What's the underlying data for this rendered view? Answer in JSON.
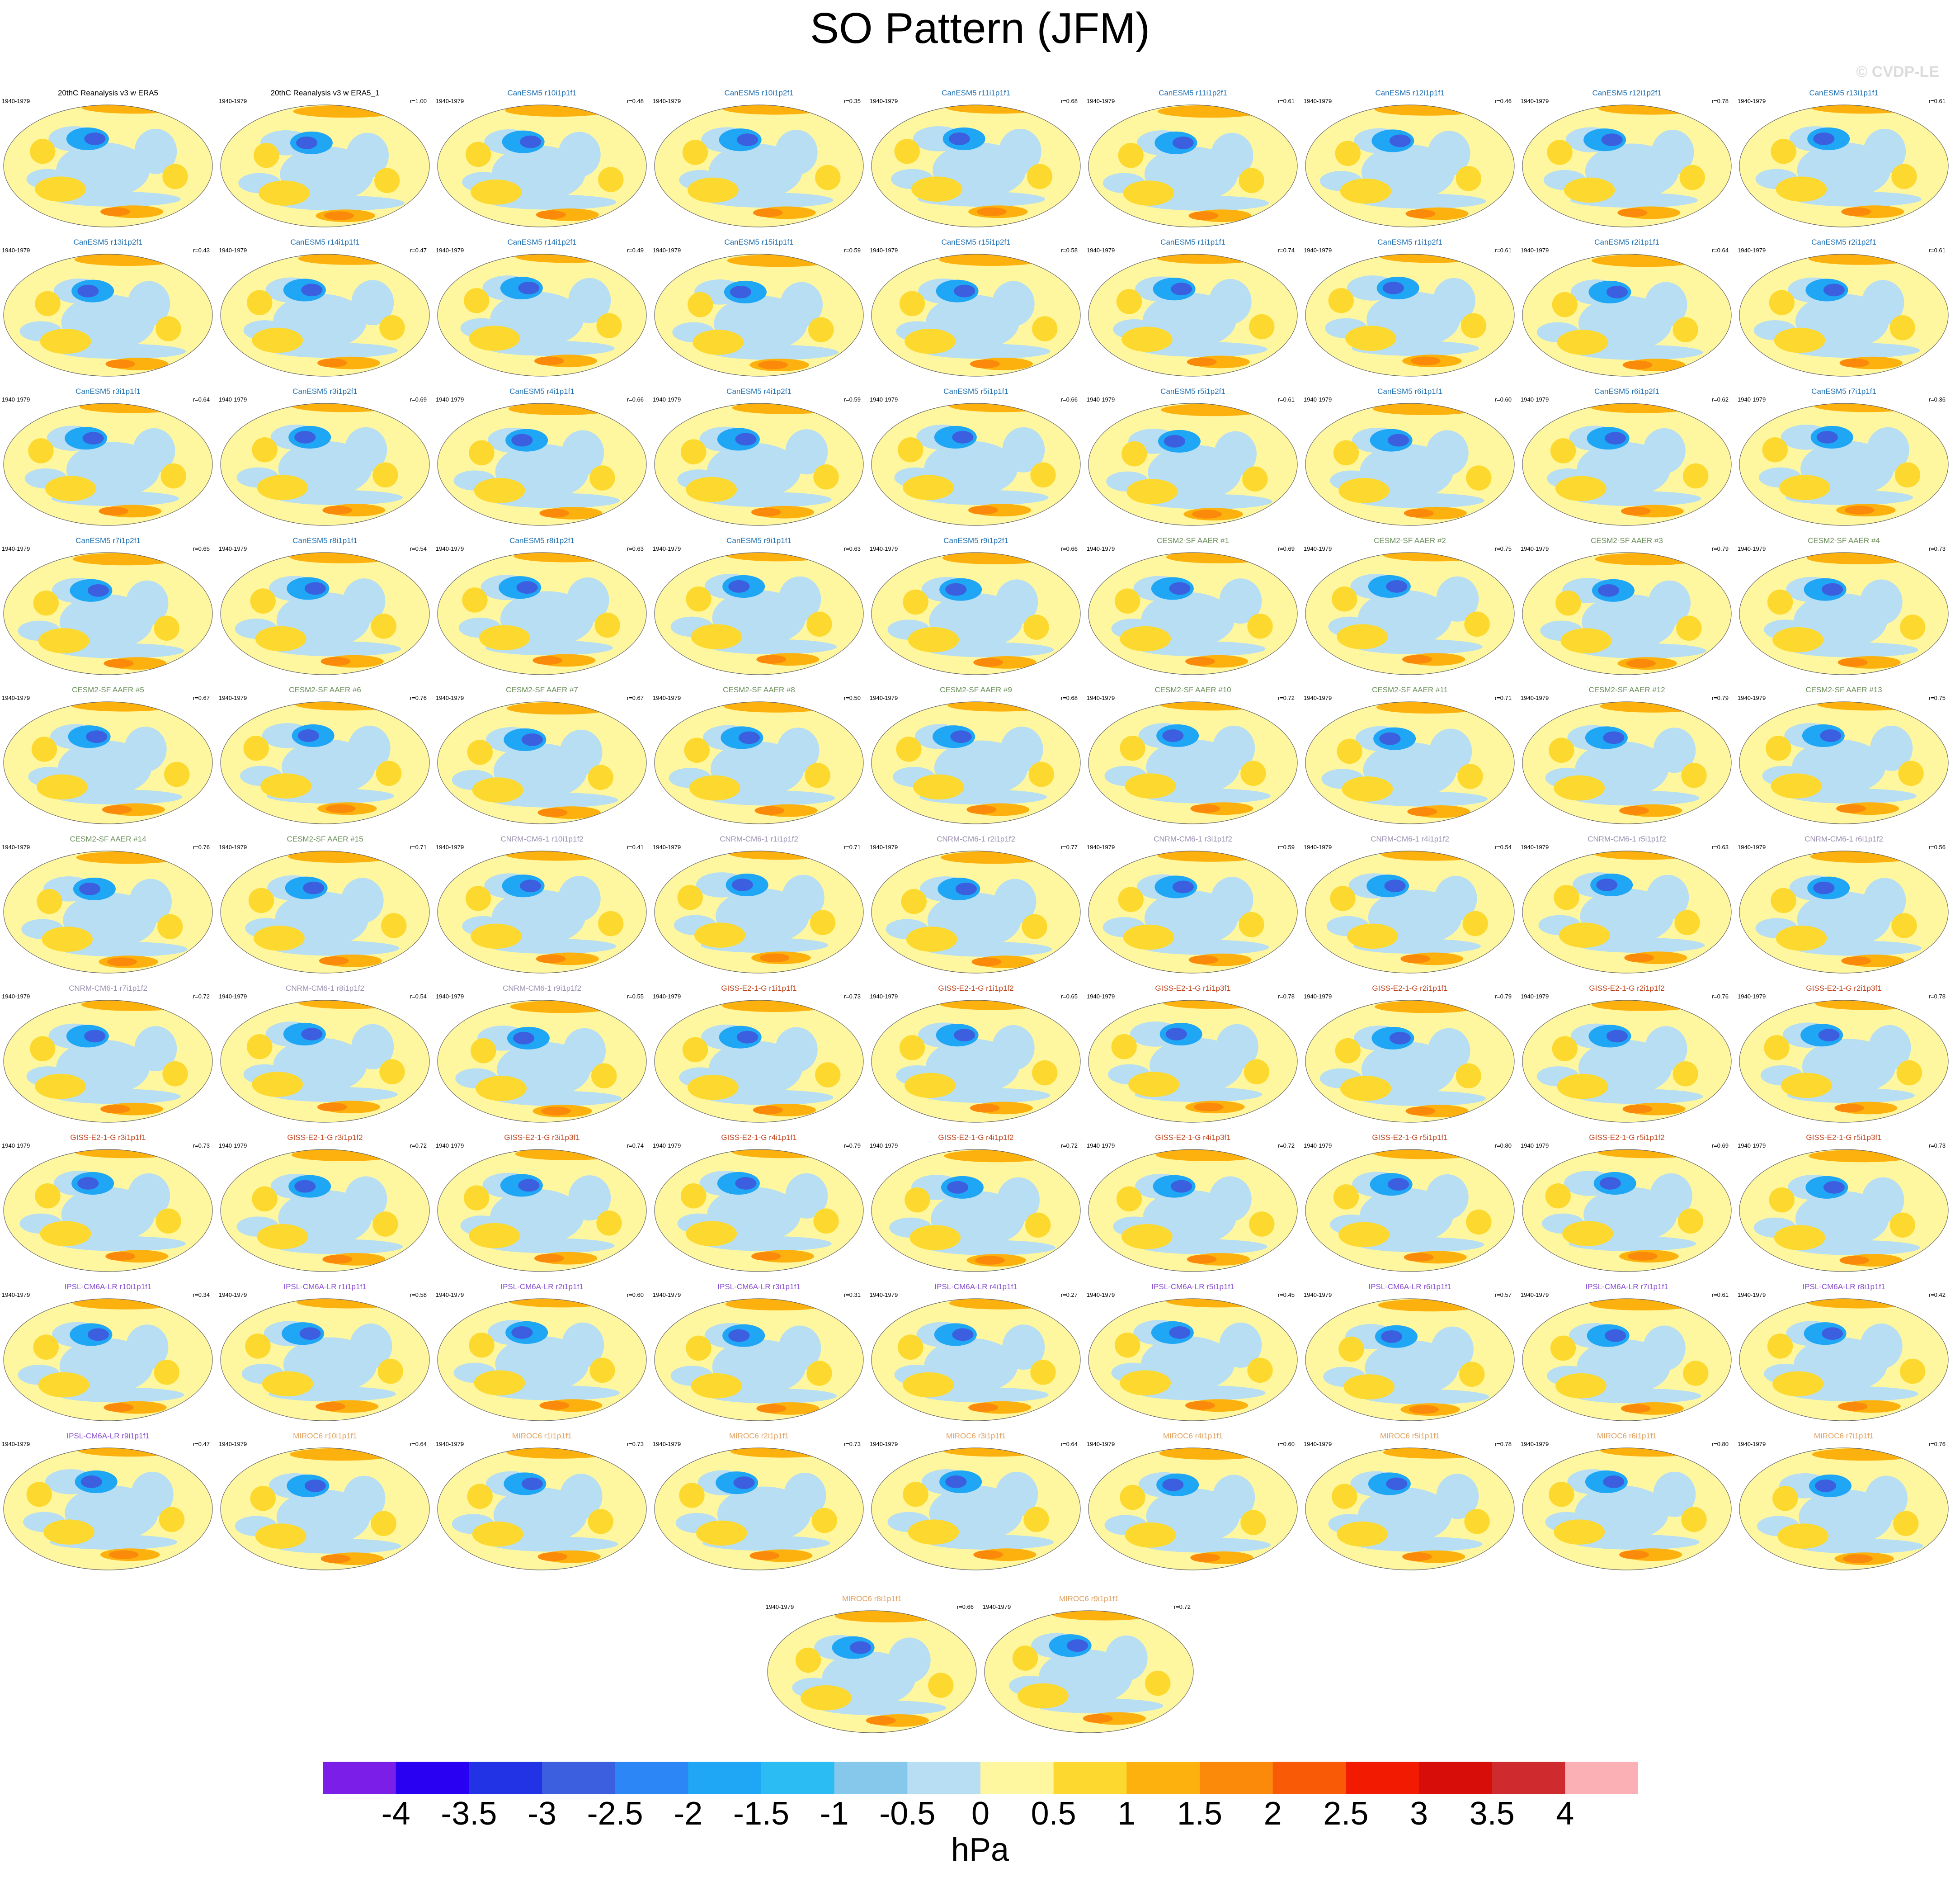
{
  "title": "SO Pattern (JFM)",
  "copyright": "© CVDP-LE",
  "chart_data": {
    "type": "heatmap",
    "title": "SO Pattern (JFM)",
    "projection": "robinson",
    "colorbar": {
      "units": "hPa",
      "ticks": [
        "-4",
        "-3.5",
        "-3",
        "-2.5",
        "-2",
        "-1.5",
        "-1",
        "-0.5",
        "0",
        "0.5",
        "1",
        "1.5",
        "2",
        "2.5",
        "3",
        "3.5",
        "4"
      ],
      "colors": [
        "#7a1ee8",
        "#2a00f2",
        "#2233e6",
        "#3b5fdf",
        "#2c86f5",
        "#1fa6f4",
        "#2bbcf4",
        "#86c7ec",
        "#b7def2",
        "#fff7a0",
        "#fdd930",
        "#fdb10e",
        "#fb8a0a",
        "#f85a06",
        "#f21b02",
        "#d70d0a",
        "#cf2a2e",
        "#fab0b5"
      ],
      "range": [
        -4,
        4
      ]
    },
    "panels": [
      {
        "name": "20thC Reanalysis v3 w ERA5",
        "years": "1940-1979",
        "corr": "",
        "group": "obs"
      },
      {
        "name": "20thC Reanalysis v3 w ERA5_1",
        "years": "1940-1979",
        "corr": "r=1.00",
        "group": "obs"
      },
      {
        "name": "CanESM5 r10i1p1f1",
        "years": "1940-1979",
        "corr": "r=0.48",
        "group": "canesm"
      },
      {
        "name": "CanESM5 r10i1p2f1",
        "years": "1940-1979",
        "corr": "r=0.35",
        "group": "canesm"
      },
      {
        "name": "CanESM5 r11i1p1f1",
        "years": "1940-1979",
        "corr": "r=0.68",
        "group": "canesm"
      },
      {
        "name": "CanESM5 r11i1p2f1",
        "years": "1940-1979",
        "corr": "r=0.61",
        "group": "canesm"
      },
      {
        "name": "CanESM5 r12i1p1f1",
        "years": "1940-1979",
        "corr": "r=0.46",
        "group": "canesm"
      },
      {
        "name": "CanESM5 r12i1p2f1",
        "years": "1940-1979",
        "corr": "r=0.78",
        "group": "canesm"
      },
      {
        "name": "CanESM5 r13i1p1f1",
        "years": "1940-1979",
        "corr": "r=0.61",
        "group": "canesm"
      },
      {
        "name": "CanESM5 r13i1p2f1",
        "years": "1940-1979",
        "corr": "r=0.43",
        "group": "canesm"
      },
      {
        "name": "CanESM5 r14i1p1f1",
        "years": "1940-1979",
        "corr": "r=0.47",
        "group": "canesm"
      },
      {
        "name": "CanESM5 r14i1p2f1",
        "years": "1940-1979",
        "corr": "r=0.49",
        "group": "canesm"
      },
      {
        "name": "CanESM5 r15i1p1f1",
        "years": "1940-1979",
        "corr": "r=0.59",
        "group": "canesm"
      },
      {
        "name": "CanESM5 r15i1p2f1",
        "years": "1940-1979",
        "corr": "r=0.58",
        "group": "canesm"
      },
      {
        "name": "CanESM5 r1i1p1f1",
        "years": "1940-1979",
        "corr": "r=0.74",
        "group": "canesm"
      },
      {
        "name": "CanESM5 r1i1p2f1",
        "years": "1940-1979",
        "corr": "r=0.61",
        "group": "canesm"
      },
      {
        "name": "CanESM5 r2i1p1f1",
        "years": "1940-1979",
        "corr": "r=0.64",
        "group": "canesm"
      },
      {
        "name": "CanESM5 r2i1p2f1",
        "years": "1940-1979",
        "corr": "r=0.61",
        "group": "canesm"
      },
      {
        "name": "CanESM5 r3i1p1f1",
        "years": "1940-1979",
        "corr": "r=0.64",
        "group": "canesm"
      },
      {
        "name": "CanESM5 r3i1p2f1",
        "years": "1940-1979",
        "corr": "r=0.69",
        "group": "canesm"
      },
      {
        "name": "CanESM5 r4i1p1f1",
        "years": "1940-1979",
        "corr": "r=0.66",
        "group": "canesm"
      },
      {
        "name": "CanESM5 r4i1p2f1",
        "years": "1940-1979",
        "corr": "r=0.59",
        "group": "canesm"
      },
      {
        "name": "CanESM5 r5i1p1f1",
        "years": "1940-1979",
        "corr": "r=0.66",
        "group": "canesm"
      },
      {
        "name": "CanESM5 r5i1p2f1",
        "years": "1940-1979",
        "corr": "r=0.61",
        "group": "canesm"
      },
      {
        "name": "CanESM5 r6i1p1f1",
        "years": "1940-1979",
        "corr": "r=0.60",
        "group": "canesm"
      },
      {
        "name": "CanESM5 r6i1p2f1",
        "years": "1940-1979",
        "corr": "r=0.62",
        "group": "canesm"
      },
      {
        "name": "CanESM5 r7i1p1f1",
        "years": "1940-1979",
        "corr": "r=0.36",
        "group": "canesm"
      },
      {
        "name": "CanESM5 r7i1p2f1",
        "years": "1940-1979",
        "corr": "r=0.65",
        "group": "canesm"
      },
      {
        "name": "CanESM5 r8i1p1f1",
        "years": "1940-1979",
        "corr": "r=0.54",
        "group": "canesm"
      },
      {
        "name": "CanESM5 r8i1p2f1",
        "years": "1940-1979",
        "corr": "r=0.63",
        "group": "canesm"
      },
      {
        "name": "CanESM5 r9i1p1f1",
        "years": "1940-1979",
        "corr": "r=0.63",
        "group": "canesm"
      },
      {
        "name": "CanESM5 r9i1p2f1",
        "years": "1940-1979",
        "corr": "r=0.66",
        "group": "canesm"
      },
      {
        "name": "CESM2-SF AAER #1",
        "years": "1940-1979",
        "corr": "r=0.69",
        "group": "cesm"
      },
      {
        "name": "CESM2-SF AAER #2",
        "years": "1940-1979",
        "corr": "r=0.75",
        "group": "cesm"
      },
      {
        "name": "CESM2-SF AAER #3",
        "years": "1940-1979",
        "corr": "r=0.79",
        "group": "cesm"
      },
      {
        "name": "CESM2-SF AAER #4",
        "years": "1940-1979",
        "corr": "r=0.73",
        "group": "cesm"
      },
      {
        "name": "CESM2-SF AAER #5",
        "years": "1940-1979",
        "corr": "r=0.67",
        "group": "cesm"
      },
      {
        "name": "CESM2-SF AAER #6",
        "years": "1940-1979",
        "corr": "r=0.76",
        "group": "cesm"
      },
      {
        "name": "CESM2-SF AAER #7",
        "years": "1940-1979",
        "corr": "r=0.67",
        "group": "cesm"
      },
      {
        "name": "CESM2-SF AAER #8",
        "years": "1940-1979",
        "corr": "r=0.50",
        "group": "cesm"
      },
      {
        "name": "CESM2-SF AAER #9",
        "years": "1940-1979",
        "corr": "r=0.68",
        "group": "cesm"
      },
      {
        "name": "CESM2-SF AAER #10",
        "years": "1940-1979",
        "corr": "r=0.72",
        "group": "cesm"
      },
      {
        "name": "CESM2-SF AAER #11",
        "years": "1940-1979",
        "corr": "r=0.71",
        "group": "cesm"
      },
      {
        "name": "CESM2-SF AAER #12",
        "years": "1940-1979",
        "corr": "r=0.79",
        "group": "cesm"
      },
      {
        "name": "CESM2-SF AAER #13",
        "years": "1940-1979",
        "corr": "r=0.75",
        "group": "cesm"
      },
      {
        "name": "CESM2-SF AAER #14",
        "years": "1940-1979",
        "corr": "r=0.76",
        "group": "cesm"
      },
      {
        "name": "CESM2-SF AAER #15",
        "years": "1940-1979",
        "corr": "r=0.71",
        "group": "cesm"
      },
      {
        "name": "CNRM-CM6-1 r10i1p1f2",
        "years": "1940-1979",
        "corr": "r=0.41",
        "group": "cnrm"
      },
      {
        "name": "CNRM-CM6-1 r1i1p1f2",
        "years": "1940-1979",
        "corr": "r=0.71",
        "group": "cnrm"
      },
      {
        "name": "CNRM-CM6-1 r2i1p1f2",
        "years": "1940-1979",
        "corr": "r=0.77",
        "group": "cnrm"
      },
      {
        "name": "CNRM-CM6-1 r3i1p1f2",
        "years": "1940-1979",
        "corr": "r=0.59",
        "group": "cnrm"
      },
      {
        "name": "CNRM-CM6-1 r4i1p1f2",
        "years": "1940-1979",
        "corr": "r=0.54",
        "group": "cnrm"
      },
      {
        "name": "CNRM-CM6-1 r5i1p1f2",
        "years": "1940-1979",
        "corr": "r=0.63",
        "group": "cnrm"
      },
      {
        "name": "CNRM-CM6-1 r6i1p1f2",
        "years": "1940-1979",
        "corr": "r=0.56",
        "group": "cnrm"
      },
      {
        "name": "CNRM-CM6-1 r7i1p1f2",
        "years": "1940-1979",
        "corr": "r=0.72",
        "group": "cnrm"
      },
      {
        "name": "CNRM-CM6-1 r8i1p1f2",
        "years": "1940-1979",
        "corr": "r=0.54",
        "group": "cnrm"
      },
      {
        "name": "CNRM-CM6-1 r9i1p1f2",
        "years": "1940-1979",
        "corr": "r=0.55",
        "group": "cnrm"
      },
      {
        "name": "GISS-E2-1-G r1i1p1f1",
        "years": "1940-1979",
        "corr": "r=0.73",
        "group": "giss"
      },
      {
        "name": "GISS-E2-1-G r1i1p1f2",
        "years": "1940-1979",
        "corr": "r=0.65",
        "group": "giss"
      },
      {
        "name": "GISS-E2-1-G r1i1p3f1",
        "years": "1940-1979",
        "corr": "r=0.78",
        "group": "giss"
      },
      {
        "name": "GISS-E2-1-G r2i1p1f1",
        "years": "1940-1979",
        "corr": "r=0.79",
        "group": "giss"
      },
      {
        "name": "GISS-E2-1-G r2i1p1f2",
        "years": "1940-1979",
        "corr": "r=0.76",
        "group": "giss"
      },
      {
        "name": "GISS-E2-1-G r2i1p3f1",
        "years": "1940-1979",
        "corr": "r=0.78",
        "group": "giss"
      },
      {
        "name": "GISS-E2-1-G r3i1p1f1",
        "years": "1940-1979",
        "corr": "r=0.73",
        "group": "giss"
      },
      {
        "name": "GISS-E2-1-G r3i1p1f2",
        "years": "1940-1979",
        "corr": "r=0.72",
        "group": "giss"
      },
      {
        "name": "GISS-E2-1-G r3i1p3f1",
        "years": "1940-1979",
        "corr": "r=0.74",
        "group": "giss"
      },
      {
        "name": "GISS-E2-1-G r4i1p1f1",
        "years": "1940-1979",
        "corr": "r=0.79",
        "group": "giss"
      },
      {
        "name": "GISS-E2-1-G r4i1p1f2",
        "years": "1940-1979",
        "corr": "r=0.72",
        "group": "giss"
      },
      {
        "name": "GISS-E2-1-G r4i1p3f1",
        "years": "1940-1979",
        "corr": "r=0.72",
        "group": "giss"
      },
      {
        "name": "GISS-E2-1-G r5i1p1f1",
        "years": "1940-1979",
        "corr": "r=0.80",
        "group": "giss"
      },
      {
        "name": "GISS-E2-1-G r5i1p1f2",
        "years": "1940-1979",
        "corr": "r=0.69",
        "group": "giss"
      },
      {
        "name": "GISS-E2-1-G r5i1p3f1",
        "years": "1940-1979",
        "corr": "r=0.73",
        "group": "giss"
      },
      {
        "name": "IPSL-CM6A-LR r10i1p1f1",
        "years": "1940-1979",
        "corr": "r=0.34",
        "group": "ipsl"
      },
      {
        "name": "IPSL-CM6A-LR r1i1p1f1",
        "years": "1940-1979",
        "corr": "r=0.58",
        "group": "ipsl"
      },
      {
        "name": "IPSL-CM6A-LR r2i1p1f1",
        "years": "1940-1979",
        "corr": "r=0.60",
        "group": "ipsl"
      },
      {
        "name": "IPSL-CM6A-LR r3i1p1f1",
        "years": "1940-1979",
        "corr": "r=0.31",
        "group": "ipsl"
      },
      {
        "name": "IPSL-CM6A-LR r4i1p1f1",
        "years": "1940-1979",
        "corr": "r=0.27",
        "group": "ipsl"
      },
      {
        "name": "IPSL-CM6A-LR r5i1p1f1",
        "years": "1940-1979",
        "corr": "r=0.45",
        "group": "ipsl"
      },
      {
        "name": "IPSL-CM6A-LR r6i1p1f1",
        "years": "1940-1979",
        "corr": "r=0.57",
        "group": "ipsl"
      },
      {
        "name": "IPSL-CM6A-LR r7i1p1f1",
        "years": "1940-1979",
        "corr": "r=0.61",
        "group": "ipsl"
      },
      {
        "name": "IPSL-CM6A-LR r8i1p1f1",
        "years": "1940-1979",
        "corr": "r=0.42",
        "group": "ipsl"
      },
      {
        "name": "IPSL-CM6A-LR r9i1p1f1",
        "years": "1940-1979",
        "corr": "r=0.47",
        "group": "ipsl"
      },
      {
        "name": "MIROC6 r10i1p1f1",
        "years": "1940-1979",
        "corr": "r=0.64",
        "group": "miroc"
      },
      {
        "name": "MIROC6 r1i1p1f1",
        "years": "1940-1979",
        "corr": "r=0.73",
        "group": "miroc"
      },
      {
        "name": "MIROC6 r2i1p1f1",
        "years": "1940-1979",
        "corr": "r=0.73",
        "group": "miroc"
      },
      {
        "name": "MIROC6 r3i1p1f1",
        "years": "1940-1979",
        "corr": "r=0.64",
        "group": "miroc"
      },
      {
        "name": "MIROC6 r4i1p1f1",
        "years": "1940-1979",
        "corr": "r=0.60",
        "group": "miroc"
      },
      {
        "name": "MIROC6 r5i1p1f1",
        "years": "1940-1979",
        "corr": "r=0.78",
        "group": "miroc"
      },
      {
        "name": "MIROC6 r6i1p1f1",
        "years": "1940-1979",
        "corr": "r=0.80",
        "group": "miroc"
      },
      {
        "name": "MIROC6 r7i1p1f1",
        "years": "1940-1979",
        "corr": "r=0.76",
        "group": "miroc"
      },
      {
        "name": "MIROC6 r8i1p1f1",
        "years": "1940-1979",
        "corr": "r=0.66",
        "group": "miroc"
      },
      {
        "name": "MIROC6 r9i1p1f1",
        "years": "1940-1979",
        "corr": "r=0.72",
        "group": "miroc"
      }
    ]
  },
  "group_colors": {
    "obs": "#000000",
    "canesm": "#1f6fb2",
    "cesm": "#6b8e5a",
    "cnrm": "#9a8fb0",
    "giss": "#c0401a",
    "ipsl": "#8a4fd1",
    "miroc": "#e0a060"
  }
}
